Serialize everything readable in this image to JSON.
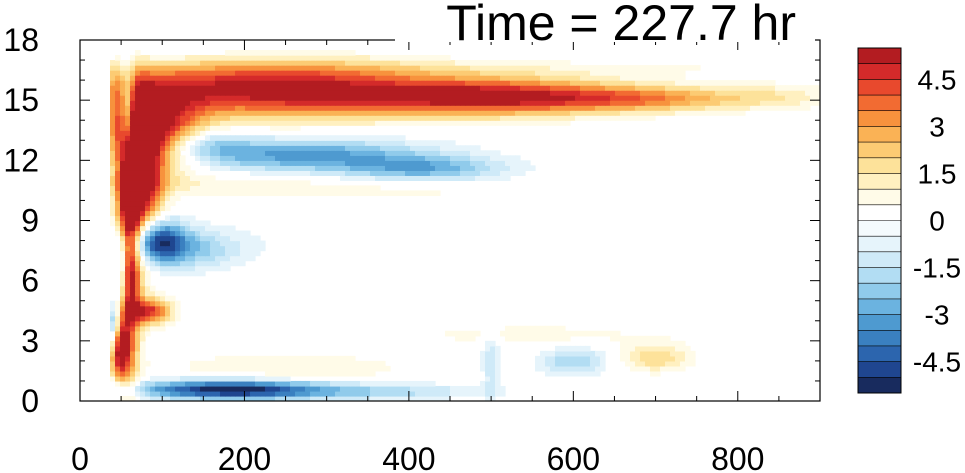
{
  "chart_data": {
    "type": "heatmap",
    "title": "Time = 227.7 hr",
    "xlabel": "",
    "ylabel": "",
    "xlim": [
      0,
      900
    ],
    "ylim": [
      0,
      18
    ],
    "x_ticks": [
      "0",
      "200",
      "400",
      "600",
      "800"
    ],
    "x_tick_values": [
      0,
      200,
      400,
      600,
      800
    ],
    "y_ticks": [
      "0",
      "3",
      "6",
      "9",
      "12",
      "15",
      "18"
    ],
    "y_tick_values": [
      0,
      3,
      6,
      9,
      12,
      15,
      18
    ],
    "colorbar": {
      "levels": [
        -5.5,
        -5,
        -4.5,
        -4,
        -3.5,
        -3,
        -2.5,
        -2,
        -1.5,
        -1,
        -0.5,
        0,
        0.5,
        1,
        1.5,
        2,
        2.5,
        3,
        3.5,
        4,
        4.5,
        5,
        5.5
      ],
      "colors": [
        "#182b5e",
        "#1f4690",
        "#2c65ae",
        "#3a80c0",
        "#4e9ad0",
        "#6bb3e0",
        "#90cbeb",
        "#b2ddf3",
        "#cfeaf8",
        "#e6f4fb",
        "#f4fafd",
        "#ffffff",
        "#fffbe8",
        "#fff0c0",
        "#fde29a",
        "#fccb73",
        "#fab255",
        "#f7923d",
        "#f26b32",
        "#e8492d",
        "#d42a2a",
        "#b31c21"
      ],
      "labels": [
        "4.5",
        "3",
        "1.5",
        "0",
        "-1.5",
        "-3",
        "-4.5"
      ],
      "label_values": [
        4.5,
        3,
        1.5,
        0,
        -1.5,
        -3,
        -4.5
      ]
    },
    "features": [
      {
        "x": 230,
        "y": 15.6,
        "sx": 140,
        "sy": 1.0,
        "value": 5.5
      },
      {
        "x": 500,
        "y": 15.2,
        "sx": 110,
        "sy": 0.65,
        "value": 4.8
      },
      {
        "x": 690,
        "y": 15.1,
        "sx": 90,
        "sy": 0.45,
        "value": 2.8
      },
      {
        "x": 850,
        "y": 15.2,
        "sx": 50,
        "sy": 0.45,
        "value": 1.0
      },
      {
        "x": 90,
        "y": 13.5,
        "sx": 40,
        "sy": 1.4,
        "value": 5.0
      },
      {
        "x": 75,
        "y": 11.0,
        "sx": 18,
        "sy": 2.5,
        "value": 5.5
      },
      {
        "x": 60,
        "y": 7.5,
        "sx": 10,
        "sy": 4.5,
        "value": 5.5
      },
      {
        "x": 48,
        "y": 2.5,
        "sx": 8,
        "sy": 1.0,
        "value": 4.5
      },
      {
        "x": 58,
        "y": 14.3,
        "sx": 6,
        "sy": 1.6,
        "value": -4.5
      },
      {
        "x": 50,
        "y": 6.5,
        "sx": 6,
        "sy": 1.3,
        "value": -3.0
      },
      {
        "x": 270,
        "y": 12.3,
        "sx": 110,
        "sy": 0.6,
        "value": -3.2
      },
      {
        "x": 420,
        "y": 11.6,
        "sx": 70,
        "sy": 0.45,
        "value": -2.5
      },
      {
        "x": 150,
        "y": 12.9,
        "sx": 35,
        "sy": 0.5,
        "value": -1.8
      },
      {
        "x": 90,
        "y": 8.0,
        "sx": 25,
        "sy": 0.8,
        "value": -5.5
      },
      {
        "x": 140,
        "y": 7.6,
        "sx": 40,
        "sy": 0.7,
        "value": -2.0
      },
      {
        "x": 85,
        "y": 4.5,
        "sx": 18,
        "sy": 0.45,
        "value": 4.5
      },
      {
        "x": 180,
        "y": 0.6,
        "sx": 80,
        "sy": 0.35,
        "value": -5.5
      },
      {
        "x": 360,
        "y": 0.5,
        "sx": 90,
        "sy": 0.3,
        "value": -1.8
      },
      {
        "x": 600,
        "y": 2.0,
        "sx": 30,
        "sy": 0.5,
        "value": -2.0
      },
      {
        "x": 500,
        "y": 2.0,
        "sx": 8,
        "sy": 1.2,
        "value": -1.5
      },
      {
        "x": 700,
        "y": 2.2,
        "sx": 30,
        "sy": 0.5,
        "value": 2.0
      },
      {
        "x": 250,
        "y": 1.6,
        "sx": 110,
        "sy": 0.6,
        "value": 1.0
      },
      {
        "x": 550,
        "y": 3.3,
        "sx": 110,
        "sy": 0.4,
        "value": 0.8
      },
      {
        "x": 200,
        "y": 10.8,
        "sx": 120,
        "sy": 0.4,
        "value": 0.9
      },
      {
        "x": 400,
        "y": 10.4,
        "sx": 90,
        "sy": 0.35,
        "value": 0.6
      },
      {
        "x": 120,
        "y": 17.4,
        "sx": 220,
        "sy": 0.35,
        "value": -0.6
      },
      {
        "x": 650,
        "y": 16.6,
        "sx": 250,
        "sy": 0.3,
        "value": 0.5
      },
      {
        "x": 350,
        "y": 8.0,
        "sx": 120,
        "sy": 1.2,
        "value": -0.5
      },
      {
        "x": 700,
        "y": 6.0,
        "sx": 90,
        "sy": 1.2,
        "value": -0.4
      },
      {
        "x": 40,
        "y": 3.8,
        "sx": 5,
        "sy": 0.8,
        "value": -3.0
      }
    ],
    "onset_x": 35
  }
}
